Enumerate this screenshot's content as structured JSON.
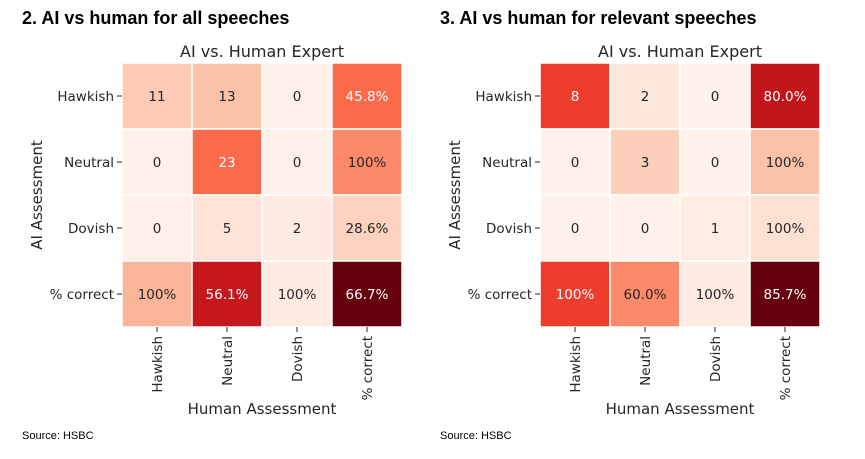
{
  "panels": [
    {
      "heading": "2. AI vs human for all speeches",
      "source": "Source: HSBC"
    },
    {
      "heading": "3. AI vs human for relevant speeches",
      "source": "Source: HSBC"
    }
  ],
  "colors": {
    "scale": "Reds",
    "light_text": "#ffffff",
    "dark_text": "#262626"
  },
  "chart_data": [
    {
      "type": "heatmap",
      "title": "AI vs. Human Expert",
      "xlabel": "Human Assessment",
      "ylabel": "AI Assessment",
      "x_categories": [
        "Hawkish",
        "Neutral",
        "Dovish",
        "% correct"
      ],
      "y_categories": [
        "Hawkish",
        "Neutral",
        "Dovish",
        "% correct"
      ],
      "cells": [
        [
          "11",
          "13",
          "0",
          "45.8%"
        ],
        [
          "0",
          "23",
          "0",
          "100%"
        ],
        [
          "0",
          "5",
          "2",
          "28.6%"
        ],
        [
          "100%",
          "56.1%",
          "100%",
          "66.7%"
        ]
      ],
      "intensity": [
        [
          0.2,
          0.23,
          0.03,
          0.5
        ],
        [
          0.03,
          0.5,
          0.03,
          0.4
        ],
        [
          0.03,
          0.11,
          0.06,
          0.17
        ],
        [
          0.27,
          0.77,
          0.06,
          1.0
        ]
      ]
    },
    {
      "type": "heatmap",
      "title": "AI vs. Human Expert",
      "xlabel": "Human Assessment",
      "ylabel": "AI Assessment",
      "x_categories": [
        "Hawkish",
        "Neutral",
        "Dovish",
        "% correct"
      ],
      "y_categories": [
        "Hawkish",
        "Neutral",
        "Dovish",
        "% correct"
      ],
      "cells": [
        [
          "8",
          "2",
          "0",
          "80.0%"
        ],
        [
          "0",
          "3",
          "0",
          "100%"
        ],
        [
          "0",
          "0",
          "1",
          "100%"
        ],
        [
          "100%",
          "60.0%",
          "100%",
          "85.7%"
        ]
      ],
      "intensity": [
        [
          0.62,
          0.08,
          0.02,
          0.78
        ],
        [
          0.02,
          0.18,
          0.02,
          0.23
        ],
        [
          0.02,
          0.02,
          0.05,
          0.12
        ],
        [
          0.62,
          0.4,
          0.06,
          1.0
        ]
      ]
    }
  ]
}
